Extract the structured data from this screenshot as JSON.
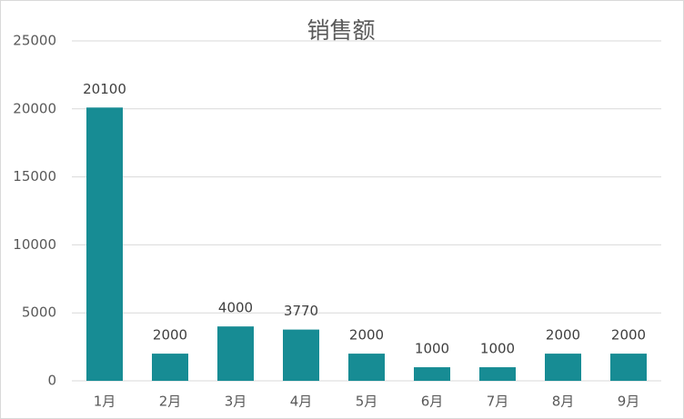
{
  "chart_data": {
    "type": "bar",
    "title": "销售额",
    "categories": [
      "1月",
      "2月",
      "3月",
      "4月",
      "5月",
      "6月",
      "7月",
      "8月",
      "9月"
    ],
    "values": [
      20100,
      2000,
      4000,
      3770,
      2000,
      1000,
      1000,
      2000,
      2000
    ],
    "color": "#178c94",
    "ylim": [
      0,
      25000
    ],
    "yticks": [
      0,
      5000,
      10000,
      15000,
      20000,
      25000
    ],
    "grid": true,
    "data_labels": true
  }
}
